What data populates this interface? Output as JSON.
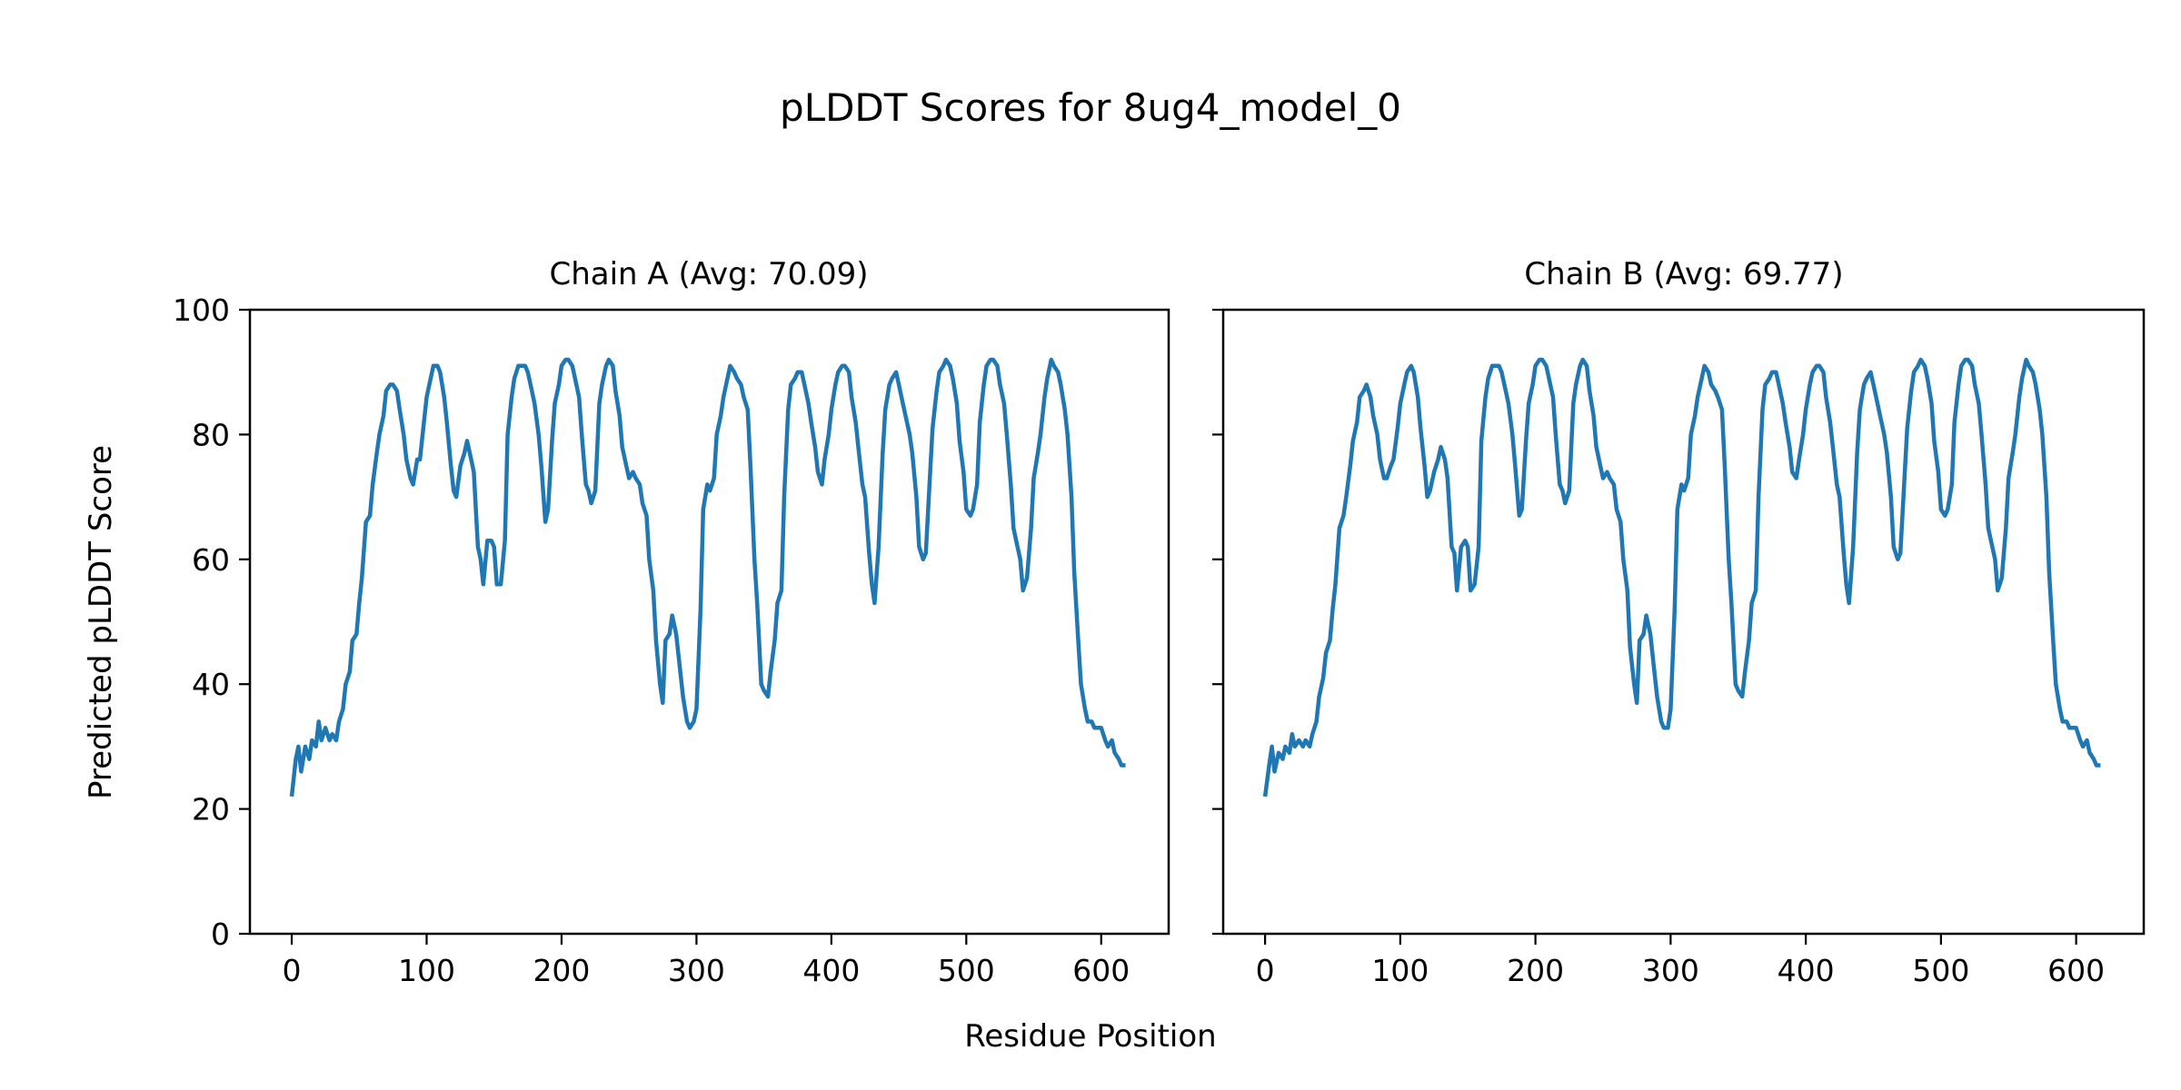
{
  "title": "pLDDT Scores for 8ug4_model_0",
  "xlabel": "Residue Position",
  "ylabel": "Predicted pLDDT Score",
  "line_color": "#1f77b4",
  "chart_data": [
    {
      "type": "line",
      "title": "Chain A (Avg: 70.09)",
      "xlabel": "Residue Position",
      "ylabel": "Predicted pLDDT Score",
      "xlim": [
        -31,
        650
      ],
      "ylim": [
        0,
        100
      ],
      "xticks": [
        0,
        100,
        200,
        300,
        400,
        500,
        600
      ],
      "yticks": [
        0,
        20,
        40,
        60,
        80,
        100
      ],
      "grid": false,
      "x": [
        0,
        3,
        5,
        7,
        10,
        13,
        15,
        18,
        20,
        22,
        25,
        28,
        30,
        33,
        35,
        38,
        40,
        43,
        45,
        48,
        50,
        52,
        55,
        58,
        60,
        63,
        65,
        68,
        70,
        73,
        75,
        78,
        80,
        83,
        85,
        88,
        90,
        93,
        95,
        98,
        100,
        103,
        105,
        108,
        110,
        113,
        115,
        118,
        120,
        122,
        125,
        128,
        130,
        133,
        135,
        138,
        140,
        142,
        145,
        148,
        150,
        152,
        155,
        158,
        160,
        163,
        165,
        168,
        170,
        173,
        175,
        178,
        180,
        183,
        185,
        188,
        190,
        193,
        195,
        198,
        200,
        203,
        205,
        208,
        210,
        213,
        215,
        218,
        220,
        222,
        225,
        228,
        230,
        233,
        235,
        238,
        240,
        243,
        245,
        248,
        250,
        253,
        255,
        258,
        260,
        263,
        265,
        268,
        270,
        273,
        275,
        277,
        280,
        282,
        285,
        288,
        290,
        293,
        295,
        298,
        300,
        303,
        305,
        308,
        310,
        313,
        315,
        318,
        320,
        323,
        325,
        328,
        330,
        333,
        335,
        338,
        340,
        343,
        345,
        348,
        350,
        353,
        355,
        358,
        360,
        363,
        365,
        368,
        370,
        373,
        375,
        378,
        380,
        383,
        385,
        388,
        390,
        393,
        395,
        398,
        400,
        403,
        405,
        408,
        410,
        413,
        415,
        418,
        420,
        423,
        425,
        428,
        430,
        432,
        435,
        438,
        440,
        443,
        445,
        448,
        450,
        453,
        455,
        458,
        460,
        463,
        465,
        468,
        470,
        473,
        475,
        478,
        480,
        483,
        485,
        488,
        490,
        493,
        495,
        498,
        500,
        503,
        505,
        508,
        510,
        513,
        515,
        518,
        520,
        523,
        525,
        528,
        530,
        533,
        535,
        538,
        540,
        542,
        545,
        548,
        550,
        553,
        555,
        558,
        560,
        563,
        565,
        568,
        570,
        573,
        575,
        578,
        580,
        583,
        585,
        588,
        590,
        593,
        595,
        598,
        600,
        603,
        605,
        608,
        610,
        613,
        615,
        618
      ],
      "y": [
        22,
        28,
        30,
        26,
        30,
        28,
        31,
        30,
        34,
        31,
        33,
        31,
        32,
        31,
        34,
        36,
        40,
        42,
        47,
        48,
        53,
        57,
        66,
        67,
        72,
        77,
        80,
        83,
        87,
        88,
        88,
        87,
        84,
        80,
        76,
        73,
        72,
        76,
        76,
        82,
        86,
        89,
        91,
        91,
        90,
        86,
        82,
        75,
        71,
        70,
        75,
        77,
        79,
        76,
        74,
        62,
        60,
        56,
        63,
        63,
        62,
        56,
        56,
        63,
        80,
        86,
        89,
        91,
        91,
        91,
        90,
        87,
        85,
        80,
        75,
        66,
        68,
        79,
        85,
        88,
        91,
        92,
        92,
        91,
        89,
        86,
        80,
        72,
        71,
        69,
        71,
        85,
        88,
        91,
        92,
        91,
        87,
        83,
        78,
        75,
        73,
        74,
        73,
        72,
        69,
        67,
        60,
        55,
        47,
        40,
        37,
        47,
        48,
        51,
        48,
        42,
        38,
        34,
        33,
        34,
        36,
        52,
        68,
        72,
        71,
        73,
        80,
        83,
        86,
        89,
        91,
        90,
        89,
        88,
        86,
        84,
        75,
        60,
        53,
        40,
        39,
        38,
        42,
        47,
        53,
        55,
        70,
        84,
        88,
        89,
        90,
        90,
        88,
        85,
        82,
        78,
        74,
        72,
        76,
        80,
        84,
        88,
        90,
        91,
        91,
        90,
        86,
        82,
        78,
        72,
        70,
        61,
        56,
        53,
        62,
        77,
        84,
        88,
        89,
        90,
        88,
        85,
        83,
        80,
        77,
        70,
        62,
        60,
        61,
        73,
        81,
        87,
        90,
        91,
        92,
        91,
        89,
        85,
        79,
        74,
        68,
        67,
        68,
        72,
        82,
        88,
        91,
        92,
        92,
        91,
        88,
        85,
        80,
        72,
        65,
        62,
        60,
        55,
        57,
        65,
        73,
        77,
        80,
        86,
        89,
        92,
        91,
        90,
        88,
        84,
        80,
        70,
        58,
        47,
        40,
        36,
        34,
        34,
        33,
        33,
        33,
        31,
        30,
        31,
        29,
        28,
        27,
        27
      ]
    },
    {
      "type": "line",
      "title": "Chain B (Avg: 69.77)",
      "xlabel": "Residue Position",
      "ylabel": "",
      "xlim": [
        -31,
        650
      ],
      "ylim": [
        0,
        100
      ],
      "xticks": [
        0,
        100,
        200,
        300,
        400,
        500,
        600
      ],
      "yticks": [
        0,
        20,
        40,
        60,
        80,
        100
      ],
      "grid": false,
      "x": [
        0,
        3,
        5,
        7,
        10,
        13,
        15,
        18,
        20,
        22,
        25,
        28,
        30,
        33,
        35,
        38,
        40,
        43,
        45,
        48,
        50,
        52,
        55,
        58,
        60,
        63,
        65,
        68,
        70,
        73,
        75,
        78,
        80,
        83,
        85,
        88,
        90,
        93,
        95,
        98,
        100,
        103,
        105,
        108,
        110,
        113,
        115,
        118,
        120,
        122,
        125,
        128,
        130,
        133,
        135,
        138,
        140,
        142,
        145,
        148,
        150,
        152,
        155,
        158,
        160,
        163,
        165,
        168,
        170,
        173,
        175,
        178,
        180,
        183,
        185,
        188,
        190,
        193,
        195,
        198,
        200,
        203,
        205,
        208,
        210,
        213,
        215,
        218,
        220,
        222,
        225,
        228,
        230,
        233,
        235,
        238,
        240,
        243,
        245,
        248,
        250,
        253,
        255,
        258,
        260,
        263,
        265,
        268,
        270,
        273,
        275,
        277,
        280,
        282,
        285,
        288,
        290,
        293,
        295,
        298,
        300,
        303,
        305,
        308,
        310,
        313,
        315,
        318,
        320,
        323,
        325,
        328,
        330,
        333,
        335,
        338,
        340,
        343,
        345,
        348,
        350,
        353,
        355,
        358,
        360,
        363,
        365,
        368,
        370,
        373,
        375,
        378,
        380,
        383,
        385,
        388,
        390,
        393,
        395,
        398,
        400,
        403,
        405,
        408,
        410,
        413,
        415,
        418,
        420,
        423,
        425,
        428,
        430,
        432,
        435,
        438,
        440,
        443,
        445,
        448,
        450,
        453,
        455,
        458,
        460,
        463,
        465,
        468,
        470,
        473,
        475,
        478,
        480,
        483,
        485,
        488,
        490,
        493,
        495,
        498,
        500,
        503,
        505,
        508,
        510,
        513,
        515,
        518,
        520,
        523,
        525,
        528,
        530,
        533,
        535,
        538,
        540,
        542,
        545,
        548,
        550,
        553,
        555,
        558,
        560,
        563,
        565,
        568,
        570,
        573,
        575,
        578,
        580,
        583,
        585,
        588,
        590,
        593,
        595,
        598,
        600,
        603,
        605,
        608,
        610,
        613,
        615,
        618
      ],
      "y": [
        22,
        27,
        30,
        26,
        29,
        28,
        30,
        29,
        32,
        30,
        31,
        30,
        31,
        30,
        32,
        34,
        38,
        41,
        45,
        47,
        52,
        56,
        65,
        67,
        70,
        75,
        79,
        82,
        86,
        87,
        88,
        86,
        83,
        80,
        76,
        73,
        73,
        75,
        76,
        81,
        85,
        88,
        90,
        91,
        90,
        86,
        81,
        75,
        70,
        71,
        74,
        76,
        78,
        76,
        73,
        62,
        61,
        55,
        62,
        63,
        62,
        55,
        56,
        62,
        79,
        86,
        89,
        91,
        91,
        91,
        90,
        87,
        85,
        80,
        75,
        67,
        68,
        79,
        85,
        88,
        91,
        92,
        92,
        91,
        89,
        86,
        80,
        72,
        71,
        69,
        71,
        85,
        88,
        91,
        92,
        91,
        87,
        83,
        78,
        75,
        73,
        74,
        73,
        72,
        68,
        66,
        60,
        55,
        46,
        40,
        37,
        47,
        48,
        51,
        48,
        42,
        38,
        34,
        33,
        33,
        36,
        52,
        68,
        72,
        71,
        73,
        80,
        83,
        86,
        89,
        91,
        90,
        88,
        87,
        86,
        84,
        75,
        60,
        53,
        40,
        39,
        38,
        42,
        47,
        53,
        55,
        70,
        84,
        88,
        89,
        90,
        90,
        88,
        85,
        82,
        78,
        74,
        73,
        76,
        80,
        84,
        88,
        90,
        91,
        91,
        90,
        86,
        82,
        78,
        72,
        70,
        61,
        56,
        53,
        62,
        77,
        84,
        88,
        89,
        90,
        88,
        85,
        83,
        80,
        77,
        70,
        62,
        60,
        61,
        73,
        81,
        87,
        90,
        91,
        92,
        91,
        89,
        85,
        79,
        74,
        68,
        67,
        68,
        72,
        82,
        88,
        91,
        92,
        92,
        91,
        88,
        85,
        80,
        72,
        65,
        62,
        60,
        55,
        57,
        65,
        73,
        77,
        80,
        86,
        89,
        92,
        91,
        90,
        88,
        84,
        80,
        70,
        58,
        47,
        40,
        36,
        34,
        34,
        33,
        33,
        33,
        31,
        30,
        31,
        29,
        28,
        27,
        27
      ]
    }
  ]
}
